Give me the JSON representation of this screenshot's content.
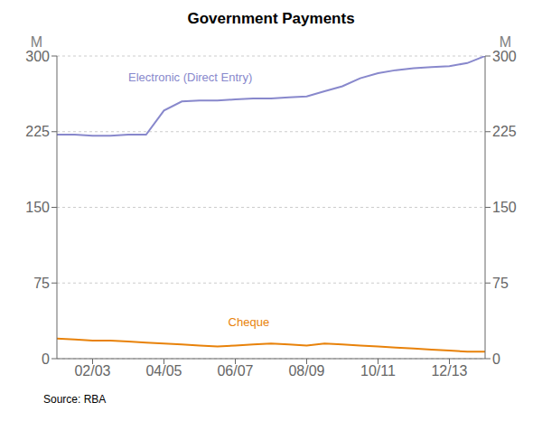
{
  "chart_data": {
    "type": "line",
    "title": "Government Payments",
    "ylabel": "M",
    "y2label": "M",
    "source": "Source: RBA",
    "x": [
      0.0,
      0.5,
      1.0,
      1.5,
      2.0,
      2.5,
      3.0,
      3.5,
      4.0,
      4.5,
      5.0,
      5.5,
      6.0,
      6.5,
      7.0,
      7.5,
      8.0,
      8.5,
      9.0,
      9.5,
      10.0,
      10.5,
      11.0,
      11.5,
      12.0
    ],
    "xlim": [
      0,
      12
    ],
    "xticks": [
      {
        "value": 1,
        "label": "02/03"
      },
      {
        "value": 3,
        "label": "04/05"
      },
      {
        "value": 5,
        "label": "06/07"
      },
      {
        "value": 7,
        "label": "08/09"
      },
      {
        "value": 9,
        "label": "10/11"
      },
      {
        "value": 11,
        "label": "12/13"
      }
    ],
    "ylim": [
      0,
      300
    ],
    "yticks": [
      0,
      75,
      150,
      225,
      300
    ],
    "y2lim": [
      0,
      300
    ],
    "y2ticks": [
      0,
      75,
      150,
      225,
      300
    ],
    "grid": true,
    "series": [
      {
        "name": "Electronic (Direct Entry)",
        "color": "#8888cc",
        "values": [
          222,
          222,
          221,
          221,
          222,
          222,
          246,
          255,
          256,
          256,
          257,
          258,
          258,
          259,
          260,
          265,
          270,
          278,
          283,
          286,
          288,
          289,
          290,
          293,
          300
        ]
      },
      {
        "name": "Cheque",
        "color": "#e8820a",
        "values": [
          20,
          19,
          18,
          18,
          17,
          16,
          15,
          14,
          13,
          12,
          13,
          14,
          15,
          14,
          13,
          15,
          14,
          13,
          12,
          11,
          10,
          9,
          8,
          7,
          7
        ]
      }
    ],
    "annotations": [
      {
        "text": "Electronic (Direct Entry)",
        "x": 2.0,
        "y": 272,
        "color": "#8888cc"
      },
      {
        "text": "Cheque",
        "x": 4.8,
        "y": 30,
        "color": "#e8820a"
      }
    ]
  }
}
